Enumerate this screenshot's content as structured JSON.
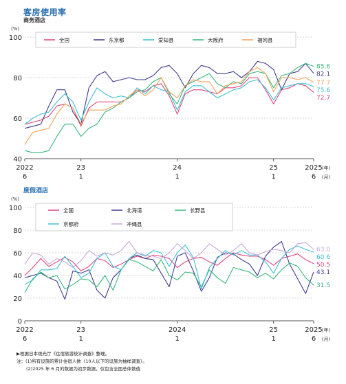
{
  "chart_data": [
    {
      "type": "line",
      "title": "客房使用率",
      "subtitle": "商务酒店",
      "ylabel": "(%)",
      "xlabel_unit": "(年)",
      "xlabel_unit2": "(月)",
      "ylim": [
        40,
        100
      ],
      "yticks": [
        40,
        60,
        80,
        100
      ],
      "grid": true,
      "legend_position": "top",
      "x_ticks": [
        {
          "year": "2022",
          "month": "6",
          "index": 0
        },
        {
          "year": "23",
          "month": "1",
          "index": 7
        },
        {
          "year": "24",
          "month": "1",
          "index": 19
        },
        {
          "year": "25",
          "month": "1",
          "index": 31
        },
        {
          "year": "2025",
          "month": "6",
          "index": 36
        }
      ],
      "series": [
        {
          "name": "全国",
          "color": "#e0447e",
          "end_label": "72.7",
          "values": [
            57,
            58,
            59,
            61,
            66,
            67,
            65,
            56,
            65,
            68,
            68,
            68,
            68,
            70,
            74,
            73,
            76,
            77,
            71,
            62,
            72,
            74,
            74,
            73,
            72,
            75,
            75,
            76,
            80,
            80,
            74,
            67,
            74,
            75,
            77,
            76,
            72.7
          ]
        },
        {
          "name": "东京都",
          "color": "#3d3b8e",
          "end_label": "82.1",
          "values": [
            55,
            56,
            57,
            66,
            74,
            74,
            63,
            57,
            75,
            81,
            83,
            78,
            79,
            80,
            79,
            79,
            81,
            85,
            86,
            82,
            75,
            82,
            86,
            85,
            82,
            82,
            83,
            80,
            83,
            88,
            87,
            84,
            74,
            82,
            83,
            87,
            82.1
          ]
        },
        {
          "name": "爱知县",
          "color": "#3bbfd4",
          "end_label": "75.6",
          "values": [
            57,
            60,
            62,
            63,
            68,
            72,
            68,
            59,
            68,
            75,
            72,
            70,
            71,
            70,
            75,
            72,
            76,
            74,
            73,
            64,
            73,
            76,
            76,
            73,
            70,
            72,
            74,
            75,
            78,
            79,
            75,
            69,
            75,
            76,
            77,
            77,
            75.6
          ]
        },
        {
          "name": "大阪府",
          "color": "#38b67c",
          "end_label": "85.6",
          "values": [
            44,
            43,
            43,
            44,
            51,
            57,
            57,
            51,
            55,
            57,
            63,
            65,
            68,
            70,
            73,
            74,
            78,
            80,
            72,
            67,
            76,
            78,
            80,
            82,
            77,
            75,
            78,
            77,
            82,
            83,
            82,
            75,
            81,
            82,
            85,
            87,
            85.6
          ]
        },
        {
          "name": "福冈县",
          "color": "#f0a35a",
          "end_label": "77.7",
          "values": [
            47,
            53,
            54,
            55,
            62,
            67,
            65,
            57,
            64,
            64,
            64,
            66,
            67,
            71,
            74,
            71,
            74,
            80,
            73,
            70,
            76,
            79,
            78,
            78,
            72,
            76,
            77,
            78,
            83,
            85,
            82,
            73,
            80,
            80,
            79,
            80,
            77.7
          ]
        }
      ]
    },
    {
      "type": "line",
      "title": "度假酒店",
      "ylabel": "(%)",
      "xlabel_unit": "(年)",
      "xlabel_unit2": "(月)",
      "ylim": [
        0,
        100
      ],
      "yticks": [
        0,
        20,
        40,
        60,
        80,
        100
      ],
      "grid": true,
      "legend_position": "top",
      "x_ticks": [
        {
          "year": "2022",
          "month": "6",
          "index": 0
        },
        {
          "year": "23",
          "month": "1",
          "index": 7
        },
        {
          "year": "2024",
          "month": "1",
          "index": 19
        },
        {
          "year": "25",
          "month": "1",
          "index": 31
        },
        {
          "year": "2025",
          "month": "6",
          "index": 36
        }
      ],
      "series": [
        {
          "name": "全国",
          "color": "#e0447e",
          "end_label": "50.5",
          "values": [
            40,
            47,
            55,
            48,
            52,
            56,
            52,
            44,
            48,
            55,
            53,
            47,
            50,
            54,
            57,
            55,
            58,
            57,
            55,
            47,
            52,
            55,
            56,
            52,
            49,
            55,
            60,
            58,
            57,
            57,
            54,
            49,
            55,
            57,
            59,
            54,
            50.5
          ]
        },
        {
          "name": "北海道",
          "color": "#3d3b8e",
          "end_label": "43.1",
          "values": [
            38,
            40,
            42,
            38,
            35,
            19,
            44,
            42,
            45,
            27,
            20,
            38,
            45,
            55,
            58,
            55,
            54,
            42,
            30,
            57,
            60,
            44,
            26,
            38,
            56,
            60,
            59,
            54,
            50,
            40,
            57,
            65,
            70,
            50,
            37,
            24,
            43.1
          ]
        },
        {
          "name": "长野县",
          "color": "#38b67c",
          "end_label": "31.5",
          "values": [
            25,
            37,
            43,
            38,
            40,
            28,
            32,
            37,
            36,
            30,
            40,
            27,
            45,
            54,
            52,
            48,
            44,
            54,
            40,
            36,
            43,
            42,
            30,
            45,
            38,
            33,
            47,
            45,
            43,
            38,
            42,
            37,
            45,
            51,
            48,
            38,
            31.5
          ]
        },
        {
          "name": "京都府",
          "color": "#3bbfd4",
          "end_label": "60.6",
          "values": [
            32,
            36,
            45,
            45,
            46,
            57,
            48,
            38,
            42,
            55,
            60,
            48,
            45,
            55,
            60,
            57,
            62,
            60,
            48,
            60,
            67,
            56,
            28,
            47,
            55,
            62,
            58,
            62,
            58,
            58,
            52,
            42,
            55,
            63,
            66,
            63,
            60.6
          ]
        },
        {
          "name": "冲绳县",
          "color": "#c9a7d9",
          "end_label": "63.0",
          "values": [
            50,
            60,
            58,
            50,
            55,
            52,
            47,
            53,
            62,
            57,
            60,
            58,
            62,
            70,
            60,
            58,
            57,
            55,
            60,
            68,
            62,
            55,
            60,
            68,
            63,
            58,
            62,
            68,
            60,
            58,
            61,
            63,
            62,
            60,
            68,
            69,
            63.0
          ]
        }
      ]
    }
  ],
  "notes": [
    "▶根据日本观光厅《住宿旅游统计调查》整理。",
    "注：(1)所有设施的累计住宿人数（10人以下的设施为抽样调查）。",
    "(2)2025 年 6 月的数据为初步数据，仅包含全国总体数值"
  ]
}
